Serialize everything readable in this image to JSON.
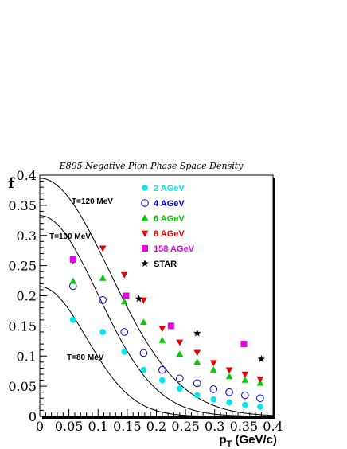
{
  "chart_data": {
    "type": "scatter",
    "title": "E895 Negative Pion Phase Space Density",
    "ylabel": "f",
    "xlabel_main": "p",
    "xlabel_sub": "T",
    "xlabel_unit": " (GeV/c)",
    "xlim": [
      0,
      0.4
    ],
    "ylim": [
      0,
      0.4
    ],
    "x_ticks": [
      "0",
      "0.05",
      "0.1",
      "0.15",
      "0.2",
      "0.25",
      "0.3",
      "0.35",
      "0.4"
    ],
    "y_ticks": [
      "0",
      "0.05",
      "0.1",
      "0.15",
      "0.2",
      "0.25",
      "0.3",
      "0.35",
      "0.4"
    ],
    "grid": false,
    "legend_position": "top-right",
    "series": [
      {
        "name": "2 AGeV",
        "marker": "circle",
        "color": "#00e5ee",
        "x": [
          0.057,
          0.108,
          0.145,
          0.178,
          0.21,
          0.24,
          0.27,
          0.298,
          0.325,
          0.352,
          0.378
        ],
        "y": [
          0.16,
          0.14,
          0.107,
          0.077,
          0.06,
          0.046,
          0.035,
          0.028,
          0.023,
          0.019,
          0.016
        ]
      },
      {
        "name": "4 AGeV",
        "marker": "open-circle",
        "color": "#0000e6",
        "x": [
          0.057,
          0.108,
          0.145,
          0.178,
          0.21,
          0.24,
          0.27,
          0.298,
          0.325,
          0.352,
          0.378
        ],
        "y": [
          0.216,
          0.193,
          0.14,
          0.105,
          0.077,
          0.063,
          0.055,
          0.045,
          0.04,
          0.035,
          0.03
        ]
      },
      {
        "name": "6 AGeV",
        "marker": "triangle-up",
        "color": "#00cc00",
        "x": [
          0.057,
          0.108,
          0.145,
          0.178,
          0.21,
          0.24,
          0.27,
          0.298,
          0.325,
          0.352,
          0.378
        ],
        "y": [
          0.224,
          0.229,
          0.19,
          0.156,
          0.126,
          0.103,
          0.09,
          0.077,
          0.066,
          0.06,
          0.055
        ]
      },
      {
        "name": "8 AGeV",
        "marker": "triangle-down",
        "color": "#e60000",
        "x": [
          0.057,
          0.108,
          0.145,
          0.178,
          0.21,
          0.24,
          0.27,
          0.298,
          0.325,
          0.352,
          0.378
        ],
        "y": [
          0.258,
          0.279,
          0.235,
          0.193,
          0.146,
          0.123,
          0.106,
          0.089,
          0.077,
          0.07,
          0.062
        ]
      },
      {
        "name": "158 AGeV",
        "marker": "square",
        "color": "#e600e6",
        "x": [
          0.057,
          0.148,
          0.225,
          0.35
        ],
        "y": [
          0.26,
          0.2,
          0.15,
          0.12
        ]
      },
      {
        "name": "STAR",
        "marker": "star",
        "color": "#000000",
        "x": [
          0.17,
          0.27,
          0.38
        ],
        "y": [
          0.195,
          0.138,
          0.095
        ]
      }
    ],
    "curves": [
      {
        "label": "T=120 MeV",
        "f0": 0.395,
        "T": 0.12
      },
      {
        "label": "T=100 MeV",
        "f0": 0.333,
        "T": 0.1
      },
      {
        "label": "T=80 MeV",
        "f0": 0.215,
        "T": 0.08
      }
    ]
  }
}
